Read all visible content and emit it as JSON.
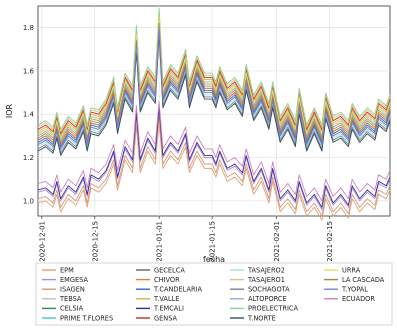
{
  "chart_data": {
    "type": "line",
    "xlabel": "fecha",
    "ylabel": "IOR",
    "ylim": [
      0.93,
      1.9
    ],
    "xlim": [
      "2020-11-30",
      "2021-03-03"
    ],
    "x_ticks": [
      "2020-12-01",
      "2020-12-15",
      "2021-01-01",
      "2021-01-15",
      "2021-02-01",
      "2021-02-15"
    ],
    "y_ticks": [
      1.0,
      1.2,
      1.4,
      1.6,
      1.8
    ],
    "grid": true,
    "legend_position": "bottom",
    "series": [
      {
        "name": "EPM",
        "color": "#e0a070",
        "group": "low",
        "offset": -0.05
      },
      {
        "name": "EMGESA",
        "color": "#b58ad0",
        "group": "low",
        "offset": 0.0
      },
      {
        "name": "ISAGEN",
        "color": "#d49a80",
        "group": "low",
        "offset": -0.03
      },
      {
        "name": "TEBSA",
        "color": "#c0c0c0",
        "group": "high",
        "offset": 0.02
      },
      {
        "name": "CELSIA",
        "color": "#2e8b57",
        "group": "high",
        "offset": -0.02
      },
      {
        "name": "PRIME T.FLORES",
        "color": "#40c8c0",
        "group": "high",
        "offset": 0.0
      },
      {
        "name": "GECELCA",
        "color": "#606060",
        "group": "high",
        "offset": 0.03
      },
      {
        "name": "CHIVOR",
        "color": "#e08030",
        "group": "high",
        "offset": 0.01
      },
      {
        "name": "T.CANDELARIA",
        "color": "#4060c0",
        "group": "high",
        "offset": -0.01
      },
      {
        "name": "T.VALLE",
        "color": "#e0b040",
        "group": "high",
        "offset": 0.04
      },
      {
        "name": "T.EMCALI",
        "color": "#3030a0",
        "group": "low",
        "offset": 0.01
      },
      {
        "name": "GENSA",
        "color": "#c03030",
        "group": "high",
        "offset": 0.05
      },
      {
        "name": "TASAJERO2",
        "color": "#a0e0e0",
        "group": "high",
        "offset": -0.03
      },
      {
        "name": "TASAJERO1",
        "color": "#e0c090",
        "group": "high",
        "offset": 0.06
      },
      {
        "name": "SOCHAGOTA",
        "color": "#808080",
        "group": "high",
        "offset": -0.04
      },
      {
        "name": "ALTOPORCE",
        "color": "#80b0e0",
        "group": "high",
        "offset": 0.02
      },
      {
        "name": "PROELECTRICA",
        "color": "#90d090",
        "group": "high",
        "offset": 0.07
      },
      {
        "name": "T.NORTE",
        "color": "#305060",
        "group": "high",
        "offset": -0.05
      },
      {
        "name": "URRA",
        "color": "#e0e060",
        "group": "high",
        "offset": 0.03
      },
      {
        "name": "LA CASCADA",
        "color": "#b08040",
        "group": "high",
        "offset": 0.0
      },
      {
        "name": "T.YOPAL",
        "color": "#8080e0",
        "group": "high",
        "offset": -0.02
      },
      {
        "name": "ECUADOR",
        "color": "#d080c0",
        "group": "low",
        "offset": 0.04
      }
    ],
    "base_high": {
      "x": [
        "2020-11-30",
        "2020-12-02",
        "2020-12-04",
        "2020-12-05",
        "2020-12-06",
        "2020-12-08",
        "2020-12-10",
        "2020-12-12",
        "2020-12-13",
        "2020-12-14",
        "2020-12-16",
        "2020-12-18",
        "2020-12-20",
        "2020-12-21",
        "2020-12-23",
        "2020-12-25",
        "2020-12-26",
        "2020-12-27",
        "2020-12-29",
        "2020-12-31",
        "2021-01-01",
        "2021-01-02",
        "2021-01-04",
        "2021-01-06",
        "2021-01-08",
        "2021-01-09",
        "2021-01-11",
        "2021-01-13",
        "2021-01-15",
        "2021-01-16",
        "2021-01-17",
        "2021-01-19",
        "2021-01-21",
        "2021-01-23",
        "2021-01-24",
        "2021-01-26",
        "2021-01-28",
        "2021-01-30",
        "2021-01-31",
        "2021-02-02",
        "2021-02-04",
        "2021-02-06",
        "2021-02-07",
        "2021-02-09",
        "2021-02-11",
        "2021-02-13",
        "2021-02-14",
        "2021-02-16",
        "2021-02-18",
        "2021-02-20",
        "2021-02-21",
        "2021-02-23",
        "2021-02-25",
        "2021-02-27",
        "2021-02-28",
        "2021-03-02",
        "2021-03-03"
      ],
      "y": [
        1.28,
        1.3,
        1.27,
        1.34,
        1.26,
        1.32,
        1.29,
        1.37,
        1.28,
        1.36,
        1.35,
        1.4,
        1.5,
        1.36,
        1.52,
        1.46,
        1.74,
        1.46,
        1.55,
        1.5,
        1.82,
        1.48,
        1.56,
        1.52,
        1.63,
        1.48,
        1.6,
        1.52,
        1.52,
        1.48,
        1.55,
        1.47,
        1.5,
        1.44,
        1.56,
        1.42,
        1.48,
        1.38,
        1.48,
        1.32,
        1.38,
        1.3,
        1.45,
        1.28,
        1.36,
        1.28,
        1.43,
        1.32,
        1.34,
        1.3,
        1.38,
        1.32,
        1.36,
        1.33,
        1.4,
        1.37,
        1.42
      ]
    },
    "base_low": {
      "x": [
        "2020-11-30",
        "2020-12-02",
        "2020-12-04",
        "2020-12-05",
        "2020-12-06",
        "2020-12-08",
        "2020-12-10",
        "2020-12-12",
        "2020-12-13",
        "2020-12-14",
        "2020-12-16",
        "2020-12-18",
        "2020-12-20",
        "2020-12-21",
        "2020-12-23",
        "2020-12-25",
        "2020-12-26",
        "2020-12-27",
        "2020-12-29",
        "2020-12-31",
        "2021-01-01",
        "2021-01-02",
        "2021-01-04",
        "2021-01-06",
        "2021-01-08",
        "2021-01-09",
        "2021-01-11",
        "2021-01-13",
        "2021-01-15",
        "2021-01-16",
        "2021-01-17",
        "2021-01-19",
        "2021-01-21",
        "2021-01-23",
        "2021-01-24",
        "2021-01-26",
        "2021-01-28",
        "2021-01-30",
        "2021-01-31",
        "2021-02-02",
        "2021-02-04",
        "2021-02-06",
        "2021-02-07",
        "2021-02-09",
        "2021-02-11",
        "2021-02-13",
        "2021-02-14",
        "2021-02-16",
        "2021-02-18",
        "2021-02-20",
        "2021-02-21",
        "2021-02-23",
        "2021-02-25",
        "2021-02-27",
        "2021-02-28",
        "2021-03-02",
        "2021-03-03"
      ],
      "y": [
        1.04,
        1.05,
        1.02,
        1.08,
        1.0,
        1.06,
        1.03,
        1.1,
        1.02,
        1.11,
        1.09,
        1.13,
        1.22,
        1.1,
        1.24,
        1.18,
        1.4,
        1.18,
        1.28,
        1.22,
        1.42,
        1.2,
        1.26,
        1.22,
        1.3,
        1.18,
        1.26,
        1.2,
        1.2,
        1.16,
        1.22,
        1.14,
        1.16,
        1.12,
        1.2,
        1.08,
        1.14,
        1.04,
        1.14,
        1.0,
        1.04,
        0.99,
        1.08,
        0.98,
        1.02,
        0.96,
        1.06,
        0.98,
        1.02,
        0.97,
        1.06,
        1.0,
        1.04,
        1.01,
        1.08,
        1.06,
        1.1
      ]
    }
  }
}
